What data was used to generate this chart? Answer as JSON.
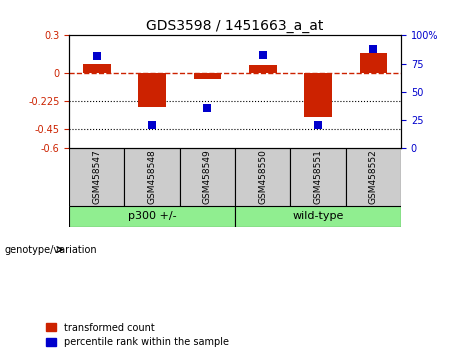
{
  "title": "GDS3598 / 1451663_a_at",
  "samples": [
    "GSM458547",
    "GSM458548",
    "GSM458549",
    "GSM458550",
    "GSM458551",
    "GSM458552"
  ],
  "red_values": [
    0.07,
    -0.27,
    -0.05,
    0.06,
    -0.35,
    0.16
  ],
  "blue_values_pct": [
    82,
    20,
    35,
    83,
    20,
    88
  ],
  "ylim_left": [
    -0.6,
    0.3
  ],
  "ylim_right": [
    0,
    100
  ],
  "yticks_left": [
    0.3,
    0.0,
    -0.225,
    -0.45,
    -0.6
  ],
  "yticks_right": [
    100,
    75,
    50,
    25,
    0
  ],
  "ytick_labels_left": [
    "0.3",
    "0",
    "-0.225",
    "-0.45",
    "-0.6"
  ],
  "ytick_labels_right": [
    "100%",
    "75",
    "50",
    "25",
    "0"
  ],
  "hline_y": 0.0,
  "dotted_lines": [
    -0.225,
    -0.45
  ],
  "groups": [
    {
      "label": "p300 +/-",
      "sample_indices": [
        0,
        1,
        2
      ],
      "color": "#90EE90"
    },
    {
      "label": "wild-type",
      "sample_indices": [
        3,
        4,
        5
      ],
      "color": "#90EE90"
    }
  ],
  "group_label_prefix": "genotype/variation",
  "bar_color": "#CC2200",
  "dot_color": "#0000CC",
  "tick_label_color_left": "#CC2200",
  "tick_label_color_right": "#0000CC",
  "bar_width": 0.5,
  "dot_size": 38,
  "legend_labels": [
    "transformed count",
    "percentile rank within the sample"
  ],
  "sample_box_color": "#CCCCCC"
}
